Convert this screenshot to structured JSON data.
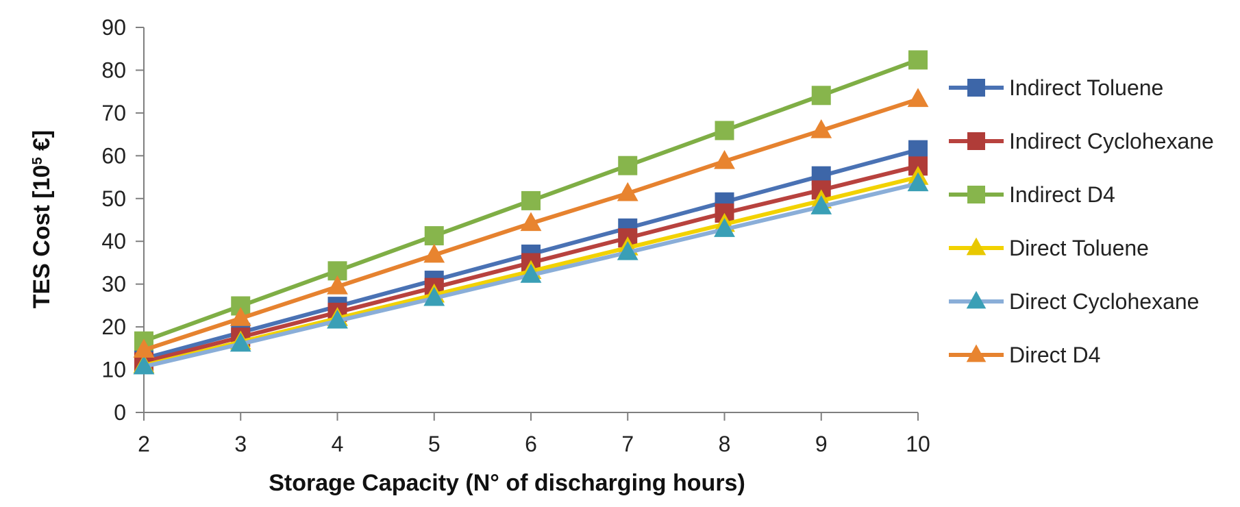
{
  "chart_data": {
    "type": "line",
    "title": "",
    "xlabel": "Storage Capacity  (N° of discharging hours)",
    "ylabel": {
      "prefix": "TES Cost [10",
      "superscript": "5",
      "suffix": " €]"
    },
    "x": [
      2,
      3,
      4,
      5,
      6,
      7,
      8,
      9,
      10
    ],
    "xlim": [
      2,
      10
    ],
    "ylim": [
      0,
      90
    ],
    "yticks": [
      0,
      10,
      20,
      30,
      40,
      50,
      60,
      70,
      80,
      90
    ],
    "grid": false,
    "legend_position": "right",
    "series": [
      {
        "name": "Indirect Toluene",
        "marker": "square",
        "color": "#4a72b4",
        "markerColor": "#3d66a8",
        "values": [
          12.6,
          18.7,
          24.8,
          30.9,
          37.0,
          43.1,
          49.2,
          55.3,
          61.4
        ]
      },
      {
        "name": "Indirect Cyclohexane",
        "marker": "square",
        "color": "#b8423e",
        "markerColor": "#b03c38",
        "values": [
          11.8,
          17.6,
          23.4,
          29.2,
          35.0,
          40.8,
          46.6,
          52.0,
          57.6
        ]
      },
      {
        "name": "Indirect D4",
        "marker": "square",
        "color": "#7fae45",
        "markerColor": "#87b54c",
        "values": [
          16.7,
          24.9,
          33.1,
          41.3,
          49.5,
          57.7,
          65.9,
          74.1,
          82.4
        ]
      },
      {
        "name": "Direct Toluene",
        "marker": "triangle",
        "color": "#f2d200",
        "markerColor": "#e8c800",
        "values": [
          11.0,
          16.5,
          22.0,
          27.5,
          33.0,
          38.5,
          44.0,
          49.5,
          55.0
        ]
      },
      {
        "name": "Direct Cyclohexane",
        "marker": "triangle",
        "color": "#8aaed8",
        "markerColor": "#3a9fb6",
        "values": [
          10.7,
          16.0,
          21.4,
          26.7,
          32.1,
          37.4,
          42.8,
          48.1,
          53.5
        ]
      },
      {
        "name": "Direct D4",
        "marker": "triangle",
        "color": "#e6822f",
        "markerColor": "#e8842f",
        "values": [
          14.6,
          22.0,
          29.4,
          36.8,
          44.2,
          51.2,
          58.7,
          65.9,
          73.2
        ]
      }
    ]
  }
}
